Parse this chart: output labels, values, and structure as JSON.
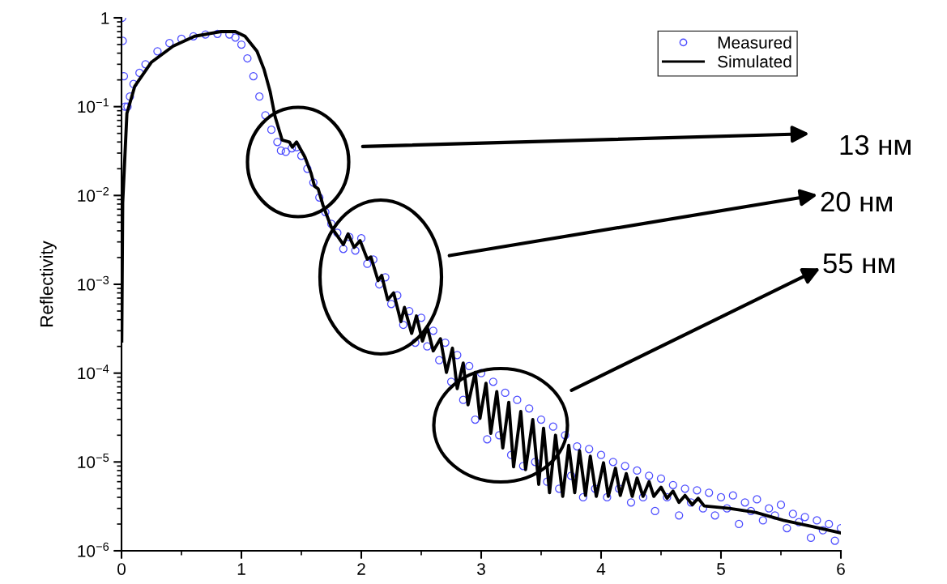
{
  "chart_data": {
    "type": "scatter",
    "ylabel": "Reflectivity",
    "log": "y",
    "xlim": [
      0,
      6
    ],
    "xticks": [
      0,
      1,
      2,
      3,
      4,
      5,
      6
    ],
    "ylim": [
      1e-06,
      1
    ],
    "yticks": [
      {
        "value": 1e-06,
        "label": "10$^{−6}$"
      },
      {
        "value": 1e-05,
        "label": "10$^{−5}$"
      },
      {
        "value": 0.0001,
        "label": "10$^{−4}$"
      },
      {
        "value": 0.001,
        "label": "10$^{−3}$"
      },
      {
        "value": 0.01,
        "label": "10$^{−2}$"
      },
      {
        "value": 0.1,
        "label": "10$^{−1}$"
      },
      1
    ],
    "legend": "top right",
    "annotations": [
      "13 нм",
      "20 нм",
      "55 нм"
    ],
    "series": [
      {
        "name": "Measured",
        "marker": "circle",
        "color": "#4c4cff",
        "x": [
          0.005,
          0.01,
          0.02,
          0.03,
          0.05,
          0.07,
          0.1,
          0.15,
          0.2,
          0.3,
          0.4,
          0.5,
          0.6,
          0.7,
          0.8,
          0.9,
          0.95,
          1.0,
          1.05,
          1.1,
          1.15,
          1.2,
          1.25,
          1.3,
          1.33,
          1.37,
          1.42,
          1.46,
          1.5,
          1.55,
          1.6,
          1.65,
          1.7,
          1.75,
          1.8,
          1.85,
          1.9,
          1.95,
          2.0,
          2.05,
          2.1,
          2.15,
          2.2,
          2.25,
          2.3,
          2.35,
          2.4,
          2.45,
          2.5,
          2.55,
          2.6,
          2.65,
          2.7,
          2.75,
          2.8,
          2.85,
          2.9,
          2.95,
          3.0,
          3.05,
          3.1,
          3.15,
          3.2,
          3.25,
          3.3,
          3.35,
          3.4,
          3.45,
          3.5,
          3.55,
          3.6,
          3.65,
          3.7,
          3.75,
          3.8,
          3.85,
          3.9,
          3.95,
          4.0,
          4.05,
          4.1,
          4.15,
          4.2,
          4.25,
          4.3,
          4.35,
          4.4,
          4.45,
          4.5,
          4.55,
          4.6,
          4.65,
          4.7,
          4.75,
          4.8,
          4.85,
          4.9,
          4.95,
          5.0,
          5.05,
          5.1,
          5.15,
          5.2,
          5.25,
          5.3,
          5.35,
          5.4,
          5.45,
          5.5,
          5.55,
          5.6,
          5.65,
          5.7,
          5.75,
          5.8,
          5.85,
          5.9,
          5.95,
          6.0
        ],
        "values": [
          1.0,
          0.55,
          0.22,
          0.1,
          0.1,
          0.13,
          0.18,
          0.24,
          0.3,
          0.42,
          0.52,
          0.58,
          0.62,
          0.65,
          0.66,
          0.65,
          0.6,
          0.5,
          0.35,
          0.22,
          0.13,
          0.08,
          0.055,
          0.04,
          0.032,
          0.031,
          0.034,
          0.035,
          0.028,
          0.02,
          0.014,
          0.0095,
          0.0065,
          0.0048,
          0.0038,
          0.0025,
          0.0034,
          0.0024,
          0.0033,
          0.0017,
          0.0019,
          0.001,
          0.0012,
          0.0006,
          0.00075,
          0.00035,
          0.0005,
          0.00022,
          0.00042,
          0.0002,
          0.0003,
          0.00014,
          0.00022,
          8e-05,
          0.00016,
          5e-05,
          0.00012,
          3e-05,
          0.0001,
          1.8e-05,
          8e-05,
          2e-05,
          6e-05,
          1.2e-05,
          5e-05,
          9e-06,
          4e-05,
          1e-05,
          3e-05,
          6e-06,
          2.5e-05,
          5e-06,
          2e-05,
          7e-06,
          1.5e-05,
          4e-06,
          1.4e-05,
          5e-06,
          1.2e-05,
          4e-06,
          1e-05,
          5e-06,
          9e-06,
          3.5e-06,
          8e-06,
          4e-06,
          7e-06,
          2.8e-06,
          6.5e-06,
          4e-06,
          5.5e-06,
          2.5e-06,
          5e-06,
          3.5e-06,
          4.8e-06,
          3e-06,
          4.5e-06,
          2.5e-06,
          4e-06,
          3e-06,
          4.2e-06,
          2e-06,
          3.5e-06,
          2.8e-06,
          3.8e-06,
          2.2e-06,
          3e-06,
          2.5e-06,
          3.3e-06,
          1.8e-06,
          2.6e-06,
          2.1e-06,
          2.4e-06,
          1.4e-06,
          2.2e-06,
          1.7e-06,
          2e-06,
          1.3e-06,
          1.8e-06
        ]
      },
      {
        "name": "Simulated",
        "type": "line",
        "color": "#000000",
        "x": [
          0.002,
          0.01,
          0.045,
          0.11,
          0.25,
          0.43,
          0.61,
          0.83,
          0.95,
          1.03,
          1.13,
          1.19,
          1.24,
          1.28,
          1.34,
          1.4,
          1.425,
          1.46,
          1.53,
          1.58,
          1.61,
          1.64,
          1.68,
          1.75,
          1.85,
          1.89,
          1.94,
          1.99,
          2.05,
          2.08,
          2.14,
          2.17,
          2.22,
          2.27,
          2.33,
          2.36,
          2.42,
          2.46,
          2.51,
          2.55,
          2.6,
          2.66,
          2.71,
          2.76,
          2.8,
          2.85,
          2.89,
          2.95,
          2.99,
          3.04,
          3.08,
          3.13,
          3.18,
          3.23,
          3.27,
          3.33,
          3.37,
          3.43,
          3.48,
          3.52,
          3.57,
          3.62,
          3.68,
          3.73,
          3.78,
          3.82,
          3.87,
          3.91,
          3.96,
          4.02,
          4.06,
          4.12,
          4.16,
          4.21,
          4.26,
          4.3,
          4.35,
          4.4,
          4.44,
          4.5,
          4.55,
          4.6,
          4.65,
          4.7,
          4.76,
          4.81,
          4.86,
          5.07,
          5.29,
          5.52,
          5.74,
          5.99
        ],
        "values": [
          0.00023,
          0.0083,
          0.084,
          0.169,
          0.317,
          0.48,
          0.62,
          0.7,
          0.7,
          0.62,
          0.42,
          0.26,
          0.147,
          0.078,
          0.042,
          0.04,
          0.035,
          0.04,
          0.027,
          0.018,
          0.0127,
          0.0119,
          0.0078,
          0.0044,
          0.0028,
          0.0037,
          0.0026,
          0.0031,
          0.00192,
          0.00203,
          0.0011,
          0.00126,
          0.00067,
          0.0008,
          0.00038,
          0.00055,
          0.00028,
          0.00044,
          0.00023,
          0.00033,
          0.000178,
          0.000244,
          0.000102,
          0.000191,
          6.7e-05,
          0.00013,
          4.4e-05,
          0.000102,
          3.1e-05,
          7.7e-05,
          2.1e-05,
          6.2e-05,
          1.44e-05,
          4.7e-05,
          8.8e-06,
          3.7e-05,
          8.2e-06,
          3e-05,
          5.6e-06,
          2.4e-05,
          4.5e-06,
          2e-05,
          4.1e-06,
          1.54e-05,
          4.5e-06,
          1.34e-05,
          4.2e-06,
          1.16e-05,
          4.1e-06,
          9.8e-06,
          4.1e-06,
          8.5e-06,
          4.2e-06,
          7.4e-06,
          4.1e-06,
          6.6e-06,
          4.1e-06,
          6e-06,
          4.1e-06,
          5.2e-06,
          3.9e-06,
          4.7e-06,
          3.5e-06,
          4.2e-06,
          3.3e-06,
          3.9e-06,
          3.2e-06,
          3e-06,
          2.7e-06,
          2.2e-06,
          1.9e-06,
          1.6e-06
        ]
      }
    ]
  }
}
